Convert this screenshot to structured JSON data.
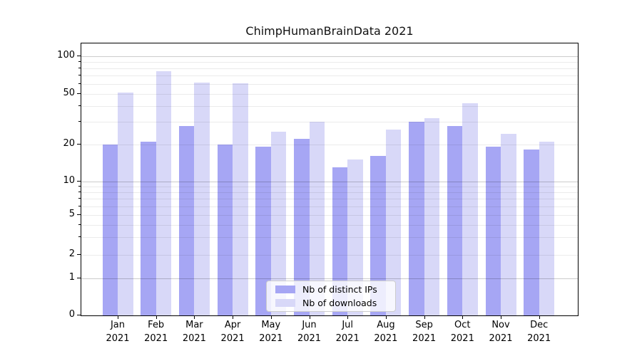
{
  "title": "ChimpHumanBrainData 2021",
  "chart_data": {
    "type": "bar",
    "title": "ChimpHumanBrainData 2021",
    "x_year": "2021",
    "categories": [
      "Jan",
      "Feb",
      "Mar",
      "Apr",
      "May",
      "Jun",
      "Jul",
      "Aug",
      "Sep",
      "Oct",
      "Nov",
      "Dec"
    ],
    "series": [
      {
        "name": "Nb of distinct IPs",
        "color": "#a6a6f4",
        "values": [
          20,
          21,
          28,
          20,
          19,
          22,
          13,
          16,
          30,
          28,
          19,
          18
        ]
      },
      {
        "name": "Nb of downloads",
        "color": "#d8d8f8",
        "values": [
          51,
          76,
          62,
          61,
          25,
          30,
          15,
          26,
          32,
          42,
          24,
          21
        ]
      }
    ],
    "yaxis": {
      "scale": "symlog",
      "tick_labels": [
        "100",
        "50",
        "20",
        "10",
        "5",
        "2",
        "1",
        "0"
      ],
      "tick_values": [
        100,
        50,
        20,
        10,
        5,
        2,
        1,
        0
      ],
      "major_grid_values": [
        100,
        10,
        1
      ],
      "minor_grid_values": [
        90,
        80,
        70,
        60,
        50,
        40,
        30,
        20,
        9,
        8,
        7,
        6,
        5,
        4,
        3,
        2
      ]
    },
    "grid": true,
    "legend_position": "lower center"
  },
  "colors": {
    "ips_bar": "#a6a6f4",
    "downloads_bar": "#d8d8f8",
    "grid_major": "rgba(0,0,0,0.20)",
    "grid_minor": "rgba(0,0,0,0.08)",
    "axis": "#000000",
    "legend_border": "#cccccc"
  }
}
